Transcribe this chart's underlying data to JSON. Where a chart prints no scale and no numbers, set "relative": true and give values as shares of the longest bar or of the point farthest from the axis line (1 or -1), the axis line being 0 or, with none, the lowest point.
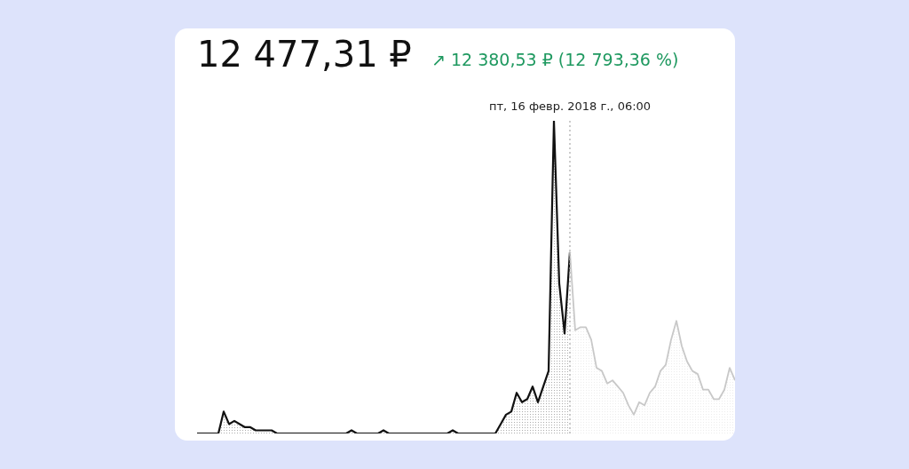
{
  "chart_data": {
    "type": "area",
    "title": "12 477,31 ₽",
    "subtitle": "↗ 12 380,53 ₽ (12 793,36 %)",
    "relative": true,
    "categories": [
      null,
      null,
      null,
      null,
      null,
      null,
      null,
      null,
      null,
      null,
      null,
      null,
      null,
      null,
      null,
      null,
      null,
      null,
      null,
      null,
      null,
      null,
      null,
      null,
      null,
      null,
      null,
      null,
      null,
      null,
      null,
      null,
      null,
      null,
      null,
      null,
      null,
      null,
      null,
      null,
      null,
      null,
      null,
      null,
      null,
      null,
      null,
      null,
      null,
      null,
      null,
      null,
      null,
      null,
      null,
      null,
      null,
      null,
      null,
      null,
      null,
      null,
      null,
      null,
      null,
      null,
      null,
      null,
      null,
      null,
      null,
      null,
      null,
      null,
      null,
      null,
      null,
      null,
      null,
      null,
      null,
      null,
      null,
      null,
      null,
      null,
      null,
      null,
      null,
      null,
      null,
      null,
      null,
      null,
      null,
      null,
      null,
      null,
      null,
      null,
      null,
      null
    ],
    "series": [
      {
        "color": "#111111",
        "values": [
          0,
          0,
          0,
          0,
          0,
          0.07,
          0.03,
          0.04,
          0.03,
          0.02,
          0.02,
          0.01,
          0.01,
          0.01,
          0.01,
          0,
          0,
          0,
          0,
          0,
          0,
          0,
          0,
          0,
          0,
          0,
          0,
          0,
          0,
          0.01,
          0,
          0,
          0,
          0,
          0,
          0.01,
          0,
          0,
          0,
          0,
          0,
          0,
          0,
          0,
          0,
          0,
          0,
          0,
          0.01,
          0,
          0,
          0,
          0,
          0,
          0,
          0,
          0,
          0.03,
          0.06,
          0.07,
          0.13,
          0.1,
          0.11,
          0.15,
          0.1,
          0.15,
          0.2,
          1,
          0.48,
          0.32,
          0.58,
          null,
          null,
          null,
          null,
          null,
          null,
          null,
          null,
          null,
          null,
          null,
          null,
          null,
          null,
          null,
          null,
          null,
          null,
          null,
          null,
          null,
          null,
          null,
          null,
          null,
          null,
          null,
          null,
          null,
          null,
          null
        ]
      },
      {
        "color": "#c8c8c8",
        "values": [
          null,
          null,
          null,
          null,
          null,
          null,
          null,
          null,
          null,
          null,
          null,
          null,
          null,
          null,
          null,
          null,
          null,
          null,
          null,
          null,
          null,
          null,
          null,
          null,
          null,
          null,
          null,
          null,
          null,
          null,
          null,
          null,
          null,
          null,
          null,
          null,
          null,
          null,
          null,
          null,
          null,
          null,
          null,
          null,
          null,
          null,
          null,
          null,
          null,
          null,
          null,
          null,
          null,
          null,
          null,
          null,
          null,
          null,
          null,
          null,
          null,
          null,
          null,
          null,
          null,
          null,
          null,
          null,
          null,
          null,
          0.58,
          0.33,
          0.34,
          0.34,
          0.3,
          0.21,
          0.2,
          0.16,
          0.17,
          0.15,
          0.13,
          0.09,
          0.06,
          0.1,
          0.09,
          0.13,
          0.15,
          0.2,
          0.22,
          0.3,
          0.36,
          0.28,
          0.23,
          0.2,
          0.19,
          0.14,
          0.14,
          0.11,
          0.11,
          0.14,
          0.21,
          0.17
        ]
      }
    ],
    "annotations": [
      "пт, 16 февр. 2018 г., 06:00"
    ]
  }
}
